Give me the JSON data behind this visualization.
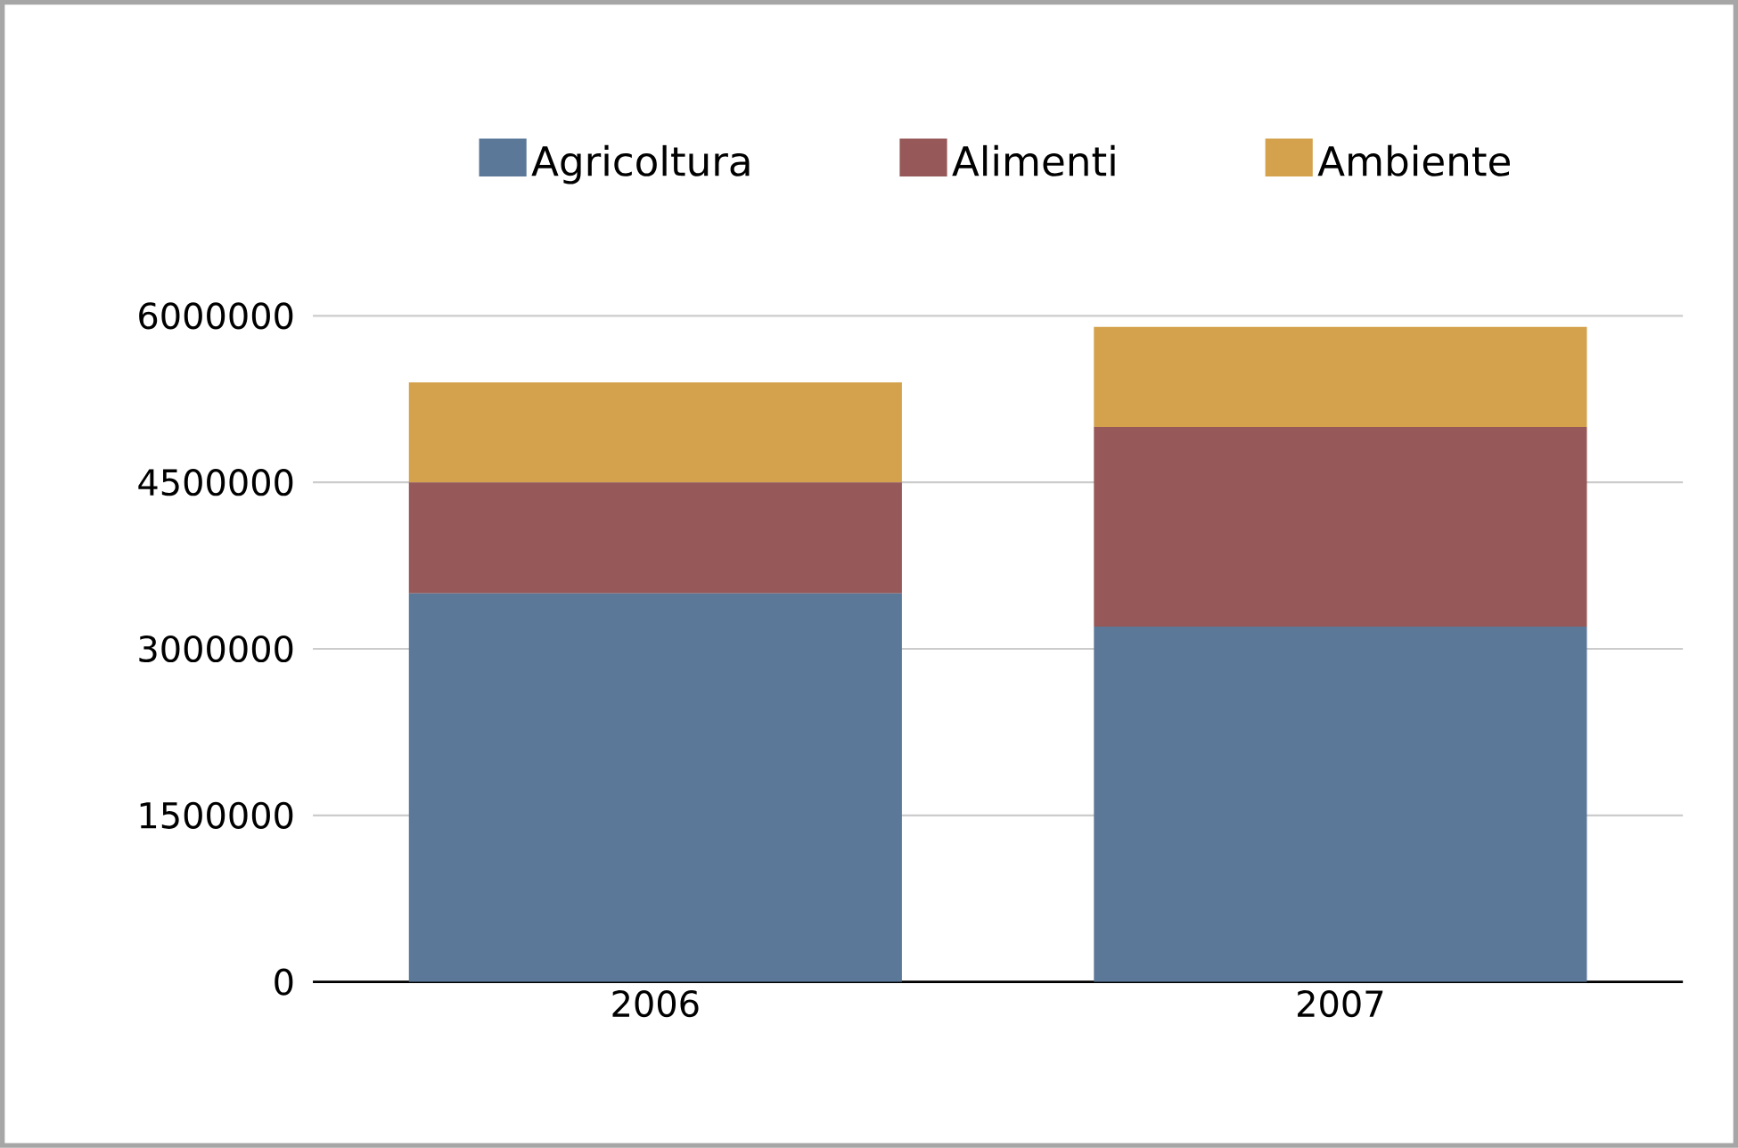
{
  "chart_data": {
    "type": "bar",
    "stacked": true,
    "categories": [
      "2006",
      "2007"
    ],
    "series": [
      {
        "name": "Agricoltura",
        "color": "#5b7899",
        "values": [
          3500000,
          3200000
        ]
      },
      {
        "name": "Alimenti",
        "color": "#965858",
        "values": [
          1000000,
          1800000
        ]
      },
      {
        "name": "Ambiente",
        "color": "#d4a24c",
        "values": [
          900000,
          900000
        ]
      }
    ],
    "ylim": [
      0,
      6000000
    ],
    "yticks": [
      0,
      1500000,
      3000000,
      4500000,
      6000000
    ],
    "grid": "y",
    "legend": "top"
  }
}
